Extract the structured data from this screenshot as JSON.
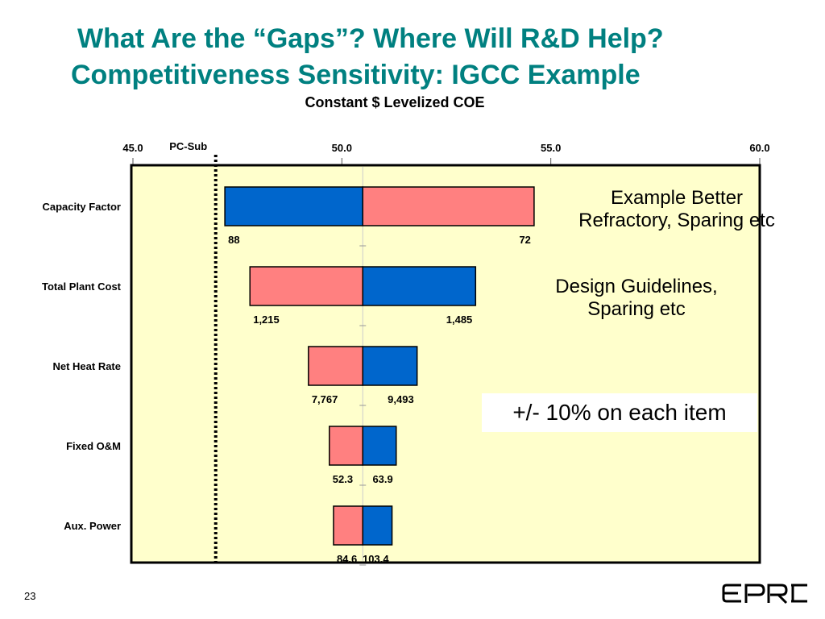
{
  "slide": {
    "title_line1": "What Are the “Gaps”? Where Will R&D Help?",
    "title_line2": "Competitiveness Sensitivity:  IGCC Example",
    "page_number": "23",
    "logo_text": "EPRI",
    "notes": [
      {
        "lines": [
          "Example Better",
          "Refractory, Sparing etc"
        ]
      },
      {
        "lines": [
          "Design Guidelines,",
          "Sparing etc"
        ]
      }
    ],
    "boxed_note": "+/- 10% on each item"
  },
  "colors": {
    "title": "#008080",
    "plot_background": "#FFFFCC",
    "low_bar": "#0066CC",
    "high_bar": "#FF8080"
  },
  "chart_data": {
    "type": "bar",
    "subtype": "tornado",
    "title": "Constant $ Levelized COE",
    "x_ticks": [
      45.0,
      50.0,
      55.0,
      60.0
    ],
    "x_tick_labels": [
      "45.0",
      "50.0",
      "55.0",
      "60.0"
    ],
    "xlim": [
      45.0,
      60.0
    ],
    "base_value": 50.5,
    "reference_line": {
      "label": "PC-Sub",
      "value": 47.0
    },
    "categories": [
      "Capacity Factor",
      "Total Plant Cost",
      "Net Heat Rate",
      "Fixed O&M",
      "Aux. Power"
    ],
    "bars": [
      {
        "category": "Capacity Factor",
        "min": 47.2,
        "max": 54.6,
        "blue_side": "left",
        "left_label": "88",
        "right_label": "72"
      },
      {
        "category": "Total Plant Cost",
        "min": 47.8,
        "max": 53.2,
        "blue_side": "right",
        "left_label": "1,215",
        "right_label": "1,485"
      },
      {
        "category": "Net Heat Rate",
        "min": 49.2,
        "max": 51.8,
        "blue_side": "right",
        "left_label": "7,767",
        "right_label": "9,493"
      },
      {
        "category": "Fixed O&M",
        "min": 49.7,
        "max": 51.3,
        "blue_side": "right",
        "left_label": "52.3",
        "right_label": "63.9"
      },
      {
        "category": "Aux. Power",
        "min": 49.8,
        "max": 51.2,
        "blue_side": "right",
        "left_label": "84.6",
        "right_label": "103.4"
      }
    ]
  }
}
